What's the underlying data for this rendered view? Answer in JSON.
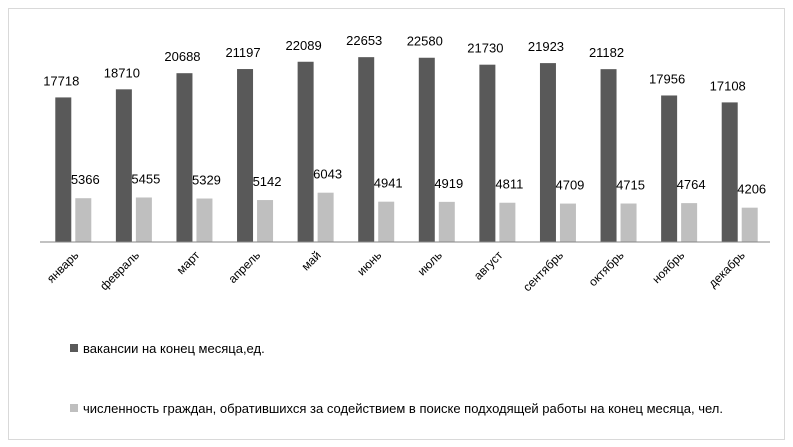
{
  "chart_data": {
    "type": "bar",
    "categories": [
      "январь",
      "февраль",
      "март",
      "апрель",
      "май",
      "июнь",
      "июль",
      "август",
      "сентябрь",
      "октябрь",
      "ноябрь",
      "декабрь"
    ],
    "series": [
      {
        "name": "вакансии на конец месяца,ед.",
        "color": "#595959",
        "values": [
          17718,
          18710,
          20688,
          21197,
          22089,
          22653,
          22580,
          21730,
          21923,
          21182,
          17956,
          17108
        ]
      },
      {
        "name": "численность граждан, обратившихся за содействием  в поиске подходящей работы на конец месяца, чел.",
        "color": "#bfbfbf",
        "values": [
          5366,
          5455,
          5329,
          5142,
          6043,
          4941,
          4919,
          4811,
          4709,
          4715,
          4764,
          4206
        ]
      }
    ],
    "ylim": [
      0,
      25000
    ]
  }
}
